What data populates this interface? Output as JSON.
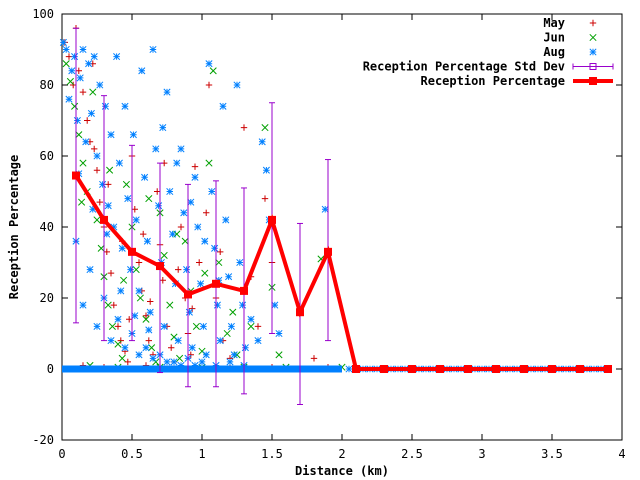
{
  "chart_data": {
    "type": "scatter",
    "xlabel": "Distance (km)",
    "ylabel": "Reception Percentage",
    "xlim": [
      0,
      4
    ],
    "ylim": [
      -20,
      100
    ],
    "xticks": [
      {
        "v": 0,
        "label": "0"
      },
      {
        "v": 0.5,
        "label": "0.5"
      },
      {
        "v": 1,
        "label": "1"
      },
      {
        "v": 1.5,
        "label": "1.5"
      },
      {
        "v": 2,
        "label": "2"
      },
      {
        "v": 2.5,
        "label": "2.5"
      },
      {
        "v": 3,
        "label": "3"
      },
      {
        "v": 3.5,
        "label": "3.5"
      },
      {
        "v": 4,
        "label": "4"
      }
    ],
    "yticks": [
      {
        "v": -20,
        "label": "-20"
      },
      {
        "v": 0,
        "label": "0"
      },
      {
        "v": 20,
        "label": "20"
      },
      {
        "v": 40,
        "label": "40"
      },
      {
        "v": 60,
        "label": "60"
      },
      {
        "v": 80,
        "label": "80"
      },
      {
        "v": 100,
        "label": "100"
      }
    ],
    "grid": false,
    "legend_position": "top-right",
    "series": [
      {
        "name": "May",
        "marker": "plus",
        "color": "#cc0000",
        "points": [
          [
            0.02,
            92
          ],
          [
            0.05,
            88
          ],
          [
            0.08,
            80
          ],
          [
            0.1,
            96
          ],
          [
            0.12,
            84
          ],
          [
            0.15,
            78
          ],
          [
            0.18,
            70
          ],
          [
            0.2,
            64
          ],
          [
            0.22,
            86
          ],
          [
            0.25,
            56
          ],
          [
            0.27,
            47
          ],
          [
            0.3,
            40
          ],
          [
            0.32,
            33
          ],
          [
            0.35,
            27
          ],
          [
            0.37,
            18
          ],
          [
            0.4,
            12
          ],
          [
            0.42,
            8
          ],
          [
            0.45,
            5
          ],
          [
            0.47,
            2
          ],
          [
            0.5,
            60
          ],
          [
            0.52,
            45
          ],
          [
            0.55,
            30
          ],
          [
            0.57,
            22
          ],
          [
            0.6,
            15
          ],
          [
            0.62,
            8
          ],
          [
            0.65,
            4
          ],
          [
            0.68,
            50
          ],
          [
            0.7,
            35
          ],
          [
            0.72,
            25
          ],
          [
            0.75,
            12
          ],
          [
            0.78,
            6
          ],
          [
            0.8,
            2
          ],
          [
            0.85,
            40
          ],
          [
            0.88,
            20
          ],
          [
            0.9,
            10
          ],
          [
            0.92,
            4
          ],
          [
            0.95,
            57
          ],
          [
            0.98,
            30
          ],
          [
            1.05,
            80
          ],
          [
            1.1,
            20
          ],
          [
            1.15,
            8
          ],
          [
            1.2,
            3
          ],
          [
            1.3,
            68
          ],
          [
            1.35,
            26
          ],
          [
            1.4,
            12
          ],
          [
            1.45,
            48
          ],
          [
            1.5,
            30
          ],
          [
            1.8,
            3
          ],
          [
            0.15,
            1
          ],
          [
            0.3,
            0.5
          ],
          [
            0.6,
            1
          ],
          [
            0.9,
            0.5
          ],
          [
            1.2,
            0.5
          ],
          [
            1.5,
            0.5
          ],
          [
            1.9,
            0.5
          ],
          [
            0.23,
            62
          ],
          [
            0.33,
            52
          ],
          [
            0.43,
            36
          ],
          [
            0.48,
            14
          ],
          [
            0.58,
            38
          ],
          [
            0.63,
            19
          ],
          [
            0.73,
            58
          ],
          [
            0.83,
            28
          ],
          [
            0.93,
            17
          ],
          [
            1.03,
            44
          ],
          [
            1.13,
            33
          ]
        ]
      },
      {
        "name": "Jun",
        "marker": "x",
        "color": "#00a000",
        "points": [
          [
            0.03,
            86
          ],
          [
            0.06,
            81
          ],
          [
            0.09,
            74
          ],
          [
            0.12,
            66
          ],
          [
            0.15,
            58
          ],
          [
            0.18,
            50
          ],
          [
            0.22,
            78
          ],
          [
            0.25,
            42
          ],
          [
            0.28,
            34
          ],
          [
            0.3,
            26
          ],
          [
            0.33,
            18
          ],
          [
            0.36,
            12
          ],
          [
            0.4,
            7
          ],
          [
            0.43,
            3
          ],
          [
            0.46,
            52
          ],
          [
            0.5,
            40
          ],
          [
            0.53,
            28
          ],
          [
            0.56,
            20
          ],
          [
            0.6,
            14
          ],
          [
            0.64,
            6
          ],
          [
            0.67,
            2
          ],
          [
            0.7,
            44
          ],
          [
            0.73,
            32
          ],
          [
            0.77,
            18
          ],
          [
            0.8,
            9
          ],
          [
            0.84,
            3
          ],
          [
            0.88,
            36
          ],
          [
            0.92,
            22
          ],
          [
            0.96,
            12
          ],
          [
            1,
            5
          ],
          [
            1.05,
            58
          ],
          [
            1.08,
            84
          ],
          [
            1.12,
            30
          ],
          [
            1.18,
            10
          ],
          [
            1.25,
            4
          ],
          [
            1.35,
            12
          ],
          [
            1.45,
            68
          ],
          [
            1.5,
            23
          ],
          [
            1.55,
            4
          ],
          [
            1.85,
            31
          ],
          [
            0.2,
            1
          ],
          [
            0.4,
            0.5
          ],
          [
            0.7,
            0.5
          ],
          [
            1,
            0.5
          ],
          [
            1.3,
            0.5
          ],
          [
            1.6,
            0.5
          ],
          [
            2,
            0.5
          ],
          [
            0.14,
            47
          ],
          [
            0.34,
            56
          ],
          [
            0.44,
            25
          ],
          [
            0.62,
            48
          ],
          [
            0.82,
            38
          ],
          [
            1.02,
            27
          ],
          [
            1.22,
            16
          ]
        ]
      },
      {
        "name": "Aug",
        "marker": "star",
        "color": "#0080ff",
        "points": [
          [
            0.01,
            92
          ],
          [
            0.03,
            90
          ],
          [
            0.05,
            76
          ],
          [
            0.07,
            84
          ],
          [
            0.09,
            88
          ],
          [
            0.11,
            70
          ],
          [
            0.13,
            82
          ],
          [
            0.15,
            90
          ],
          [
            0.17,
            64
          ],
          [
            0.19,
            86
          ],
          [
            0.21,
            72
          ],
          [
            0.23,
            88
          ],
          [
            0.25,
            60
          ],
          [
            0.27,
            80
          ],
          [
            0.29,
            52
          ],
          [
            0.31,
            74
          ],
          [
            0.33,
            46
          ],
          [
            0.35,
            66
          ],
          [
            0.37,
            40
          ],
          [
            0.39,
            88
          ],
          [
            0.41,
            58
          ],
          [
            0.43,
            34
          ],
          [
            0.45,
            74
          ],
          [
            0.47,
            48
          ],
          [
            0.49,
            28
          ],
          [
            0.51,
            66
          ],
          [
            0.53,
            42
          ],
          [
            0.55,
            22
          ],
          [
            0.57,
            84
          ],
          [
            0.59,
            54
          ],
          [
            0.61,
            36
          ],
          [
            0.63,
            16
          ],
          [
            0.65,
            90
          ],
          [
            0.67,
            62
          ],
          [
            0.69,
            46
          ],
          [
            0.71,
            30
          ],
          [
            0.73,
            12
          ],
          [
            0.75,
            78
          ],
          [
            0.77,
            50
          ],
          [
            0.79,
            38
          ],
          [
            0.81,
            24
          ],
          [
            0.83,
            8
          ],
          [
            0.85,
            62
          ],
          [
            0.87,
            44
          ],
          [
            0.89,
            28
          ],
          [
            0.91,
            16
          ],
          [
            0.93,
            6
          ],
          [
            0.95,
            54
          ],
          [
            0.97,
            40
          ],
          [
            0.99,
            24
          ],
          [
            1.01,
            12
          ],
          [
            1.03,
            4
          ],
          [
            1.05,
            86
          ],
          [
            1.07,
            50
          ],
          [
            1.09,
            34
          ],
          [
            1.11,
            18
          ],
          [
            1.13,
            8
          ],
          [
            1.15,
            74
          ],
          [
            1.17,
            42
          ],
          [
            1.19,
            26
          ],
          [
            1.21,
            12
          ],
          [
            1.23,
            4
          ],
          [
            1.25,
            80
          ],
          [
            1.27,
            30
          ],
          [
            1.29,
            18
          ],
          [
            1.31,
            6
          ],
          [
            1.35,
            14
          ],
          [
            1.4,
            8
          ],
          [
            1.43,
            64
          ],
          [
            1.46,
            56
          ],
          [
            1.48,
            42
          ],
          [
            1.52,
            18
          ],
          [
            1.55,
            10
          ],
          [
            1.88,
            45
          ],
          [
            0.1,
            36
          ],
          [
            0.2,
            28
          ],
          [
            0.3,
            20
          ],
          [
            0.4,
            14
          ],
          [
            0.5,
            10
          ],
          [
            0.6,
            6
          ],
          [
            0.7,
            4
          ],
          [
            0.8,
            2
          ],
          [
            0.9,
            3
          ],
          [
            1,
            2
          ],
          [
            1.1,
            1
          ],
          [
            1.2,
            2
          ],
          [
            1.3,
            1
          ],
          [
            0.15,
            18
          ],
          [
            0.25,
            12
          ],
          [
            0.35,
            8
          ],
          [
            0.45,
            6
          ],
          [
            0.55,
            4
          ],
          [
            0.65,
            3
          ],
          [
            0.75,
            2
          ],
          [
            0.85,
            1
          ],
          [
            0.95,
            1
          ],
          [
            0.12,
            55
          ],
          [
            0.22,
            45
          ],
          [
            0.32,
            38
          ],
          [
            0.42,
            22
          ],
          [
            0.52,
            15
          ],
          [
            0.62,
            11
          ],
          [
            0.72,
            68
          ],
          [
            0.82,
            58
          ],
          [
            0.92,
            47
          ],
          [
            1.02,
            36
          ],
          [
            1.12,
            25
          ]
        ]
      },
      {
        "name": "Reception Percentage Std Dev",
        "type": "errorbar",
        "color": "#9900cc",
        "points": [
          [
            0.1,
            54.5,
            13,
            96
          ],
          [
            0.3,
            42,
            8,
            77
          ],
          [
            0.5,
            33,
            8,
            63
          ],
          [
            0.7,
            29,
            -1,
            58
          ],
          [
            0.9,
            21,
            -5,
            52
          ],
          [
            1.1,
            24,
            -5,
            53
          ],
          [
            1.3,
            22,
            -7,
            51
          ],
          [
            1.5,
            42,
            10,
            75
          ],
          [
            1.7,
            16,
            -10,
            41
          ],
          [
            1.9,
            33,
            8,
            59
          ]
        ]
      },
      {
        "name": "Reception Percentage",
        "type": "line",
        "color": "#ff0000",
        "x": [
          0.1,
          0.3,
          0.5,
          0.7,
          0.9,
          1.1,
          1.3,
          1.5,
          1.7,
          1.9,
          2.1,
          2.3,
          2.5,
          2.7,
          2.9,
          3.1,
          3.3,
          3.5,
          3.7,
          3.9
        ],
        "y": [
          54.5,
          42,
          33,
          29,
          21,
          24,
          22,
          42,
          16,
          33,
          0,
          0,
          0,
          0,
          0,
          0,
          0,
          0,
          0,
          0
        ]
      }
    ],
    "zero_band": {
      "x_start": 0,
      "x_end": 2.0,
      "y": 0,
      "color": "#0080ff"
    },
    "zero_points": [
      2.05,
      2.1,
      2.15,
      2.2,
      2.25,
      2.3,
      2.35,
      2.4,
      2.45,
      2.5,
      2.55,
      2.6,
      2.65,
      2.7,
      2.75,
      2.8,
      2.85,
      2.9,
      2.95,
      3,
      3.05,
      3.1,
      3.15,
      3.2,
      3.25,
      3.3,
      3.35,
      3.4,
      3.45,
      3.5,
      3.55,
      3.6,
      3.65,
      3.7,
      3.75,
      3.8,
      3.85
    ]
  }
}
